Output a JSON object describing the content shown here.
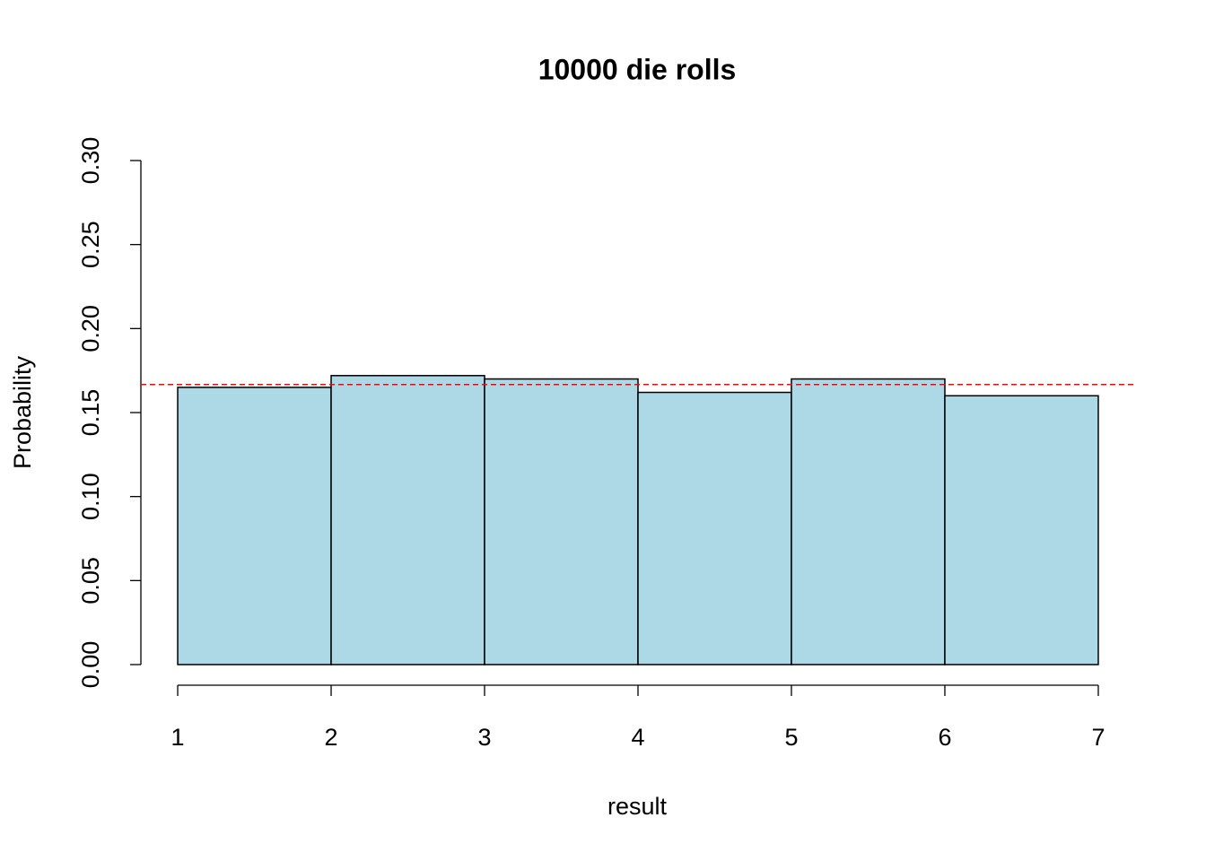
{
  "chart_data": {
    "type": "histogram",
    "title": "10000 die rolls",
    "x_label": "result",
    "y_label": "Probability",
    "bins": [
      1,
      2,
      3,
      4,
      5,
      6,
      7
    ],
    "values": [
      0.165,
      0.172,
      0.17,
      0.162,
      0.17,
      0.16
    ],
    "color": "#add8e6",
    "reference_line": {
      "value": 0.1667,
      "color": "#ff0000"
    },
    "xlim": [
      0.76,
      7.24
    ],
    "xticks": [
      1,
      2,
      3,
      4,
      5,
      6,
      7
    ],
    "ylim": [
      0,
      0.3
    ],
    "yticks": [
      {
        "value": 0,
        "label": "0.00"
      },
      {
        "value": 0.05,
        "label": "0.05"
      },
      {
        "value": 0.1,
        "label": "0.10"
      },
      {
        "value": 0.15,
        "label": "0.15"
      },
      {
        "value": 0.2,
        "label": "0.20"
      },
      {
        "value": 0.25,
        "label": "0.25"
      },
      {
        "value": 0.3,
        "label": "0.30"
      }
    ]
  }
}
